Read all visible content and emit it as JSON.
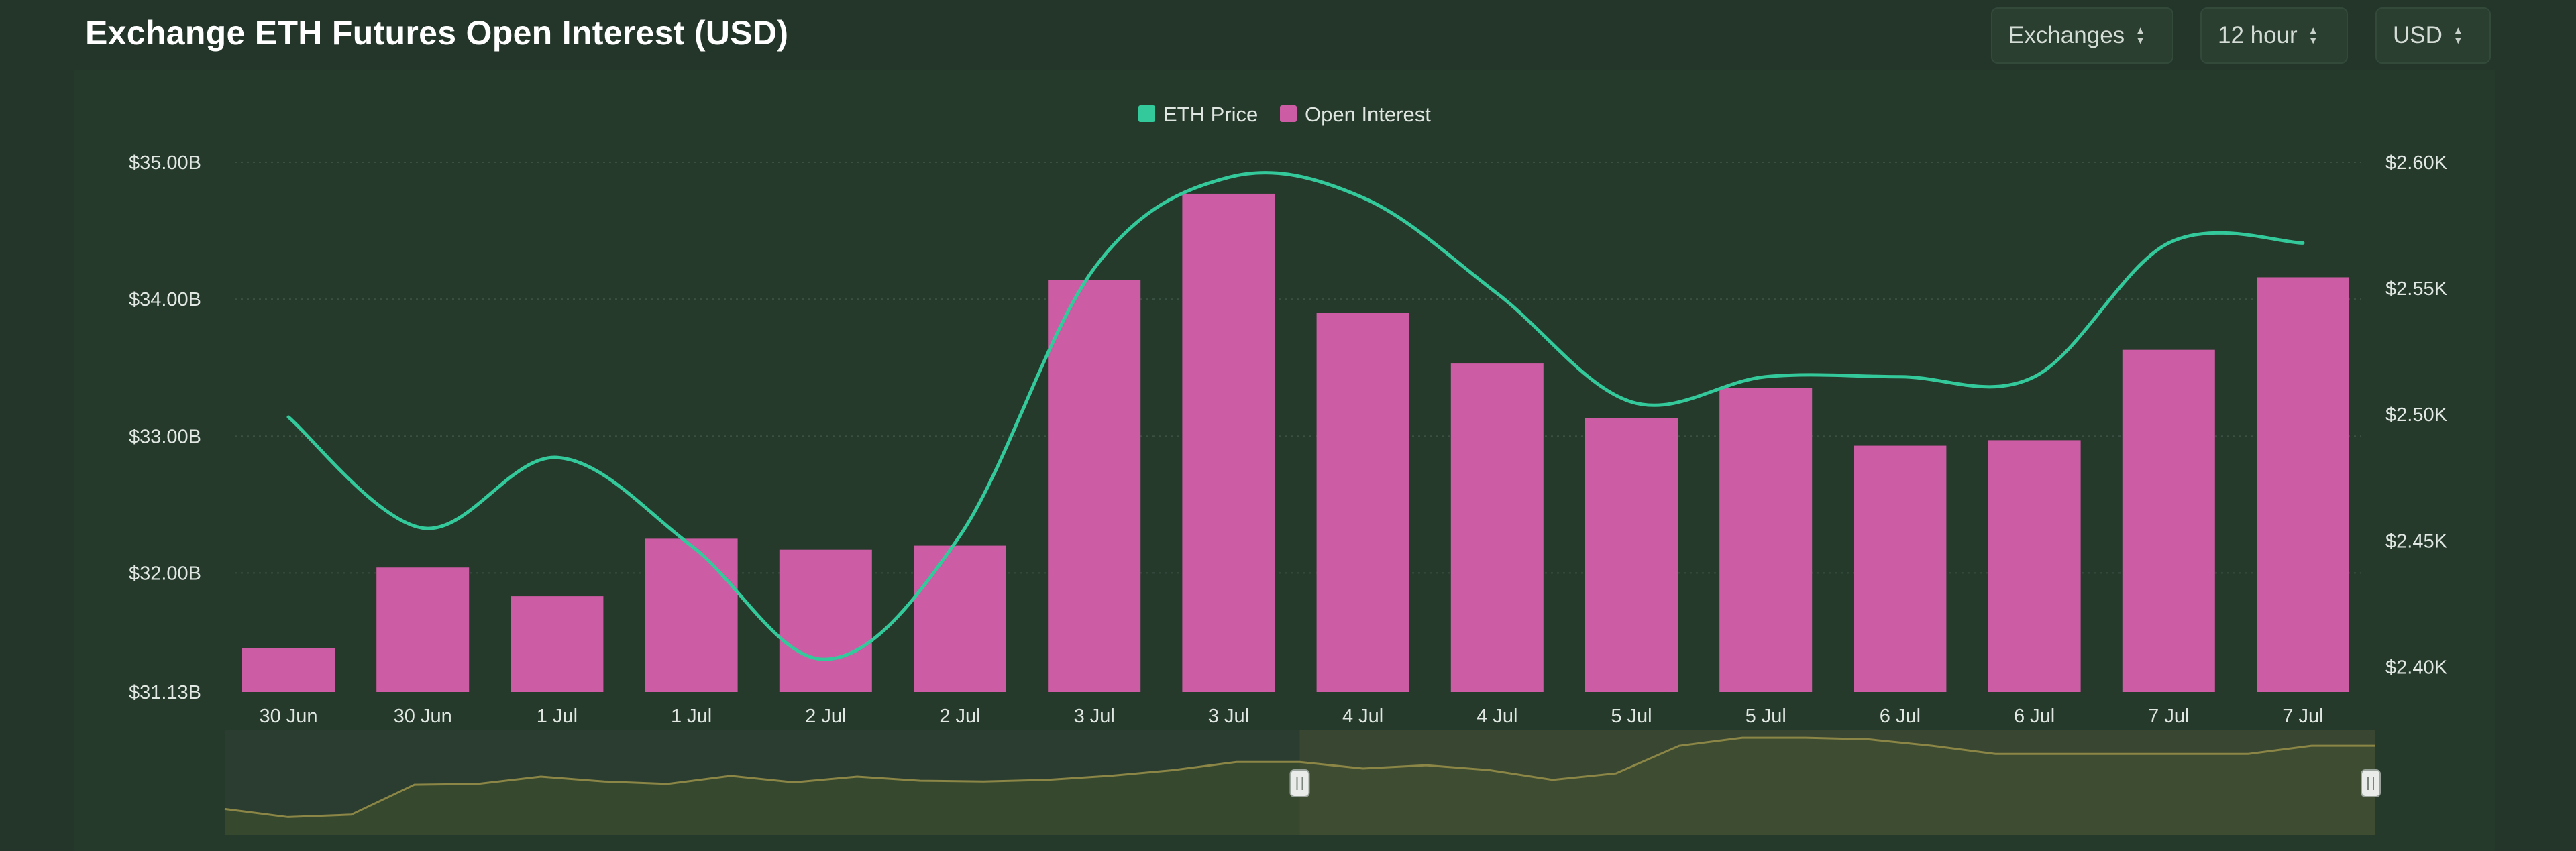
{
  "header": {
    "title": "Exchange ETH Futures Open Interest (USD)",
    "selectors": [
      {
        "label": "Exchanges"
      },
      {
        "label": "12 hour"
      },
      {
        "label": "USD"
      }
    ]
  },
  "colors": {
    "background": "#233629",
    "bar": "#cc5ca3",
    "price_line": "#34c99b",
    "navigator_line": "#8b8646",
    "navigator_fill": "#36492f",
    "navigator_selected": "#464e33"
  },
  "chart_data": {
    "type": "bar",
    "title": "Exchange ETH Futures Open Interest (USD)",
    "categories": [
      "30 Jun",
      "30 Jun",
      "1 Jul",
      "1 Jul",
      "2 Jul",
      "2 Jul",
      "3 Jul",
      "3 Jul",
      "4 Jul",
      "4 Jul",
      "5 Jul",
      "5 Jul",
      "6 Jul",
      "6 Jul",
      "7 Jul",
      "7 Jul"
    ],
    "series": [
      {
        "name": "Open Interest",
        "type": "bar",
        "axis": "left",
        "unit": "USD billions",
        "values": [
          31.45,
          32.04,
          31.83,
          32.25,
          32.17,
          32.2,
          34.14,
          34.77,
          33.9,
          33.53,
          33.13,
          33.35,
          32.93,
          32.97,
          33.63,
          34.16
        ]
      },
      {
        "name": "ETH Price",
        "type": "line",
        "axis": "right",
        "unit": "USD thousands",
        "values": [
          2.499,
          2.455,
          2.483,
          2.448,
          2.403,
          2.452,
          2.558,
          2.594,
          2.586,
          2.548,
          2.505,
          2.515,
          2.515,
          2.515,
          2.568,
          2.568
        ]
      }
    ],
    "left_axis": {
      "ticks": [
        "$31.13B",
        "$32.00B",
        "$33.00B",
        "$34.00B",
        "$35.00B"
      ],
      "tick_values": [
        31.13,
        32.0,
        33.0,
        34.0,
        35.0
      ],
      "range": [
        31.13,
        35.0
      ]
    },
    "right_axis": {
      "ticks": [
        "$2.40K",
        "$2.45K",
        "$2.50K",
        "$2.55K",
        "$2.60K"
      ],
      "tick_values": [
        2.4,
        2.45,
        2.5,
        2.55,
        2.6
      ],
      "range": [
        2.39,
        2.6
      ]
    },
    "legend": {
      "position": "top-center",
      "items": [
        "ETH Price",
        "Open Interest"
      ]
    },
    "grid": {
      "horizontal": true,
      "style": "dotted"
    },
    "navigator": {
      "values": [
        0.32,
        0.22,
        0.25,
        0.62,
        0.63,
        0.72,
        0.66,
        0.63,
        0.73,
        0.65,
        0.72,
        0.67,
        0.66,
        0.68,
        0.73,
        0.8,
        0.9,
        0.9,
        0.82,
        0.86,
        0.8,
        0.68,
        0.76,
        1.1,
        1.2,
        1.2,
        1.18,
        1.1,
        1.0,
        1.0,
        1.0,
        1.0,
        1.0,
        1.1,
        1.1
      ],
      "selection_start": 0.5,
      "selection_end": 1.0
    }
  }
}
